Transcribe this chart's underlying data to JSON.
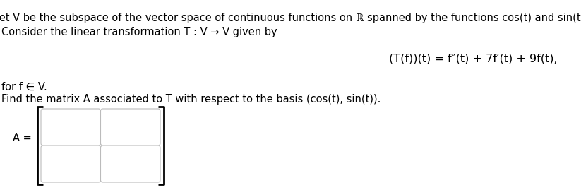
{
  "background_color": "#ffffff",
  "line1": "Let V be the subspace of the vector space of continuous functions on ℝ spanned by the functions cos(t) and sin(t).",
  "line2": "Consider the linear transformation T : V → V given by",
  "equation": "(T(f))(t) = f″(t) + 7f′(t) + 9f(t),",
  "line3": "for f ∈ V.",
  "line4": "Find the matrix A associated to T with respect to the basis (cos(t), sin(t)).",
  "label_A": "A =",
  "font_size_main": 10.5,
  "font_size_eq": 11.5
}
